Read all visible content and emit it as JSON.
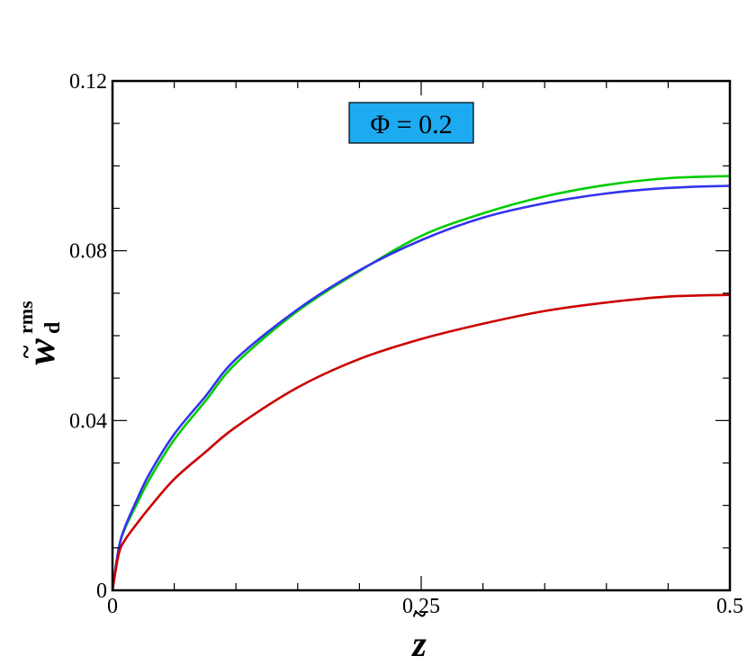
{
  "chart_data": {
    "type": "line",
    "title": "",
    "xlabel": {
      "base": "z",
      "accent": "~"
    },
    "ylabel": {
      "base": "w",
      "accent": "~",
      "superscript": "rms",
      "subscript": "d"
    },
    "xlim": [
      0,
      0.5
    ],
    "ylim": [
      0,
      0.12
    ],
    "x_ticks": [
      0,
      0.25,
      0.5
    ],
    "x_tick_labels": [
      "0",
      "0.25",
      "0.5"
    ],
    "y_ticks": [
      0,
      0.04,
      0.08,
      0.12
    ],
    "y_tick_labels": [
      "0",
      "0.04",
      "0.08",
      "0.12"
    ],
    "x_minor_step": 0.05,
    "y_minor_step": 0.01,
    "grid": false,
    "legend": "none",
    "annotation": {
      "text": "Φ = 0.2",
      "background": "#1EAAF1",
      "position": "top-center"
    },
    "series": [
      {
        "color": "#00CC00",
        "x": [
          0,
          0.005,
          0.01,
          0.02,
          0.03,
          0.05,
          0.075,
          0.1,
          0.15,
          0.2,
          0.25,
          0.3,
          0.35,
          0.4,
          0.45,
          0.5
        ],
        "y": [
          0,
          0.0098,
          0.0145,
          0.0205,
          0.0262,
          0.0355,
          0.0445,
          0.0535,
          0.0658,
          0.0752,
          0.0835,
          0.0888,
          0.0928,
          0.0955,
          0.0971,
          0.0976
        ]
      },
      {
        "color": "#3333EE",
        "x": [
          0,
          0.005,
          0.01,
          0.02,
          0.03,
          0.05,
          0.075,
          0.1,
          0.15,
          0.2,
          0.25,
          0.3,
          0.35,
          0.4,
          0.45,
          0.5
        ],
        "y": [
          0,
          0.0098,
          0.0148,
          0.0215,
          0.0275,
          0.0368,
          0.0456,
          0.0545,
          0.0662,
          0.0754,
          0.0825,
          0.0878,
          0.0912,
          0.0935,
          0.0948,
          0.0953
        ]
      },
      {
        "color": "#CC0000",
        "x": [
          0,
          0.005,
          0.01,
          0.02,
          0.03,
          0.05,
          0.075,
          0.1,
          0.15,
          0.2,
          0.25,
          0.3,
          0.35,
          0.4,
          0.45,
          0.5
        ],
        "y": [
          0,
          0.0085,
          0.0118,
          0.0158,
          0.0195,
          0.0262,
          0.0325,
          0.0385,
          0.0478,
          0.0545,
          0.0592,
          0.0628,
          0.0658,
          0.0678,
          0.0692,
          0.0696
        ]
      }
    ]
  }
}
